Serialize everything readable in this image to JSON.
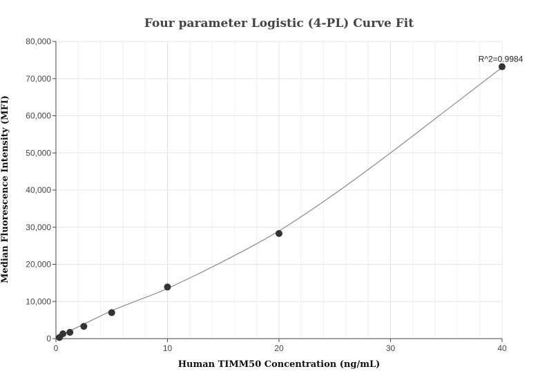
{
  "chart_data": {
    "type": "scatter",
    "title": "Four parameter Logistic (4-PL) Curve Fit",
    "xlabel": "Human TIMM50 Concentration (ng/mL)",
    "ylabel": "Median Fluorescence Intensity (MFI)",
    "xlim": [
      0,
      40
    ],
    "ylim": [
      0,
      80000
    ],
    "x_ticks": [
      0,
      10,
      20,
      30,
      40
    ],
    "x_tick_labels": [
      "0",
      "10",
      "20",
      "30",
      "40"
    ],
    "y_ticks": [
      0,
      10000,
      20000,
      30000,
      40000,
      50000,
      60000,
      70000,
      80000
    ],
    "y_tick_labels": [
      "0",
      "10,000",
      "20,000",
      "30,000",
      "40,000",
      "50,000",
      "60,000",
      "70,000",
      "80,000"
    ],
    "grid": true,
    "points": {
      "x": [
        0.3125,
        0.625,
        1.25,
        2.5,
        5,
        10,
        20,
        40
      ],
      "y": [
        300,
        1300,
        1700,
        3300,
        7000,
        13900,
        28300,
        73200
      ]
    },
    "fit_curve": {
      "x": [
        0,
        0.3125,
        0.625,
        1.25,
        2.5,
        5,
        7.5,
        10,
        15,
        20,
        25,
        30,
        35,
        40
      ],
      "y": [
        0,
        600,
        1150,
        2100,
        3900,
        7500,
        10500,
        13500,
        20800,
        29000,
        39000,
        50000,
        61500,
        73000
      ]
    },
    "annotation": "R^2=0.9984",
    "colors": {
      "points": "#333333",
      "curve": "#8a8a8a",
      "grid": "#e3e3ee"
    }
  }
}
